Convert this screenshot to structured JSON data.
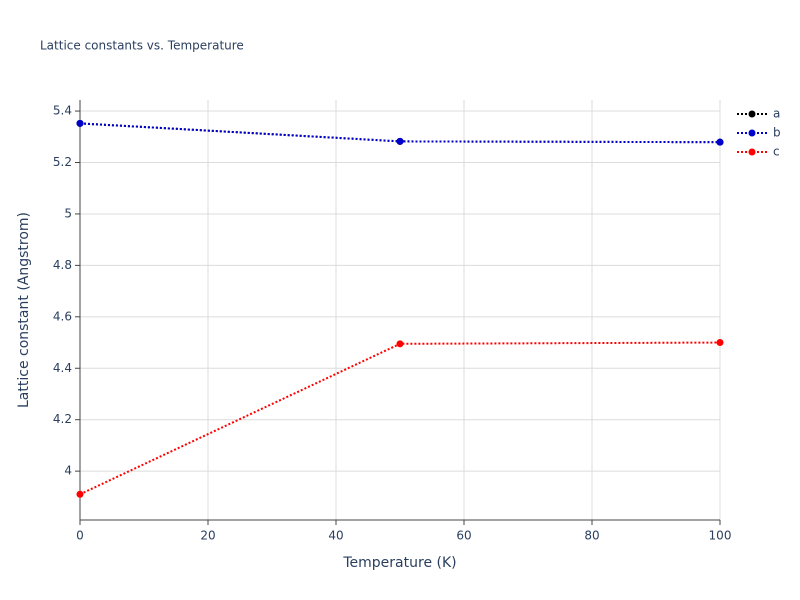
{
  "chart_data": {
    "type": "line",
    "title": "Lattice constants vs. Temperature",
    "x_label": "Temperature (K)",
    "y_label": "Lattice constant (Angstrom)",
    "x": [
      0,
      50,
      100
    ],
    "series": [
      {
        "name": "a",
        "color": "#000000",
        "values": [
          5.352,
          5.282,
          5.279
        ]
      },
      {
        "name": "b",
        "color": "#0000cc",
        "values": [
          5.352,
          5.282,
          5.279
        ]
      },
      {
        "name": "c",
        "color": "#ff0000",
        "values": [
          3.91,
          4.495,
          4.5
        ]
      }
    ],
    "xlim": [
      0,
      100
    ],
    "xticks": [
      0,
      20,
      40,
      60,
      80,
      100
    ],
    "ylim": [
      3.81,
      5.443
    ],
    "yticks": [
      4,
      4.2,
      4.4,
      4.6,
      4.8,
      5,
      5.2,
      5.4
    ],
    "grid": true,
    "legend": "right"
  }
}
